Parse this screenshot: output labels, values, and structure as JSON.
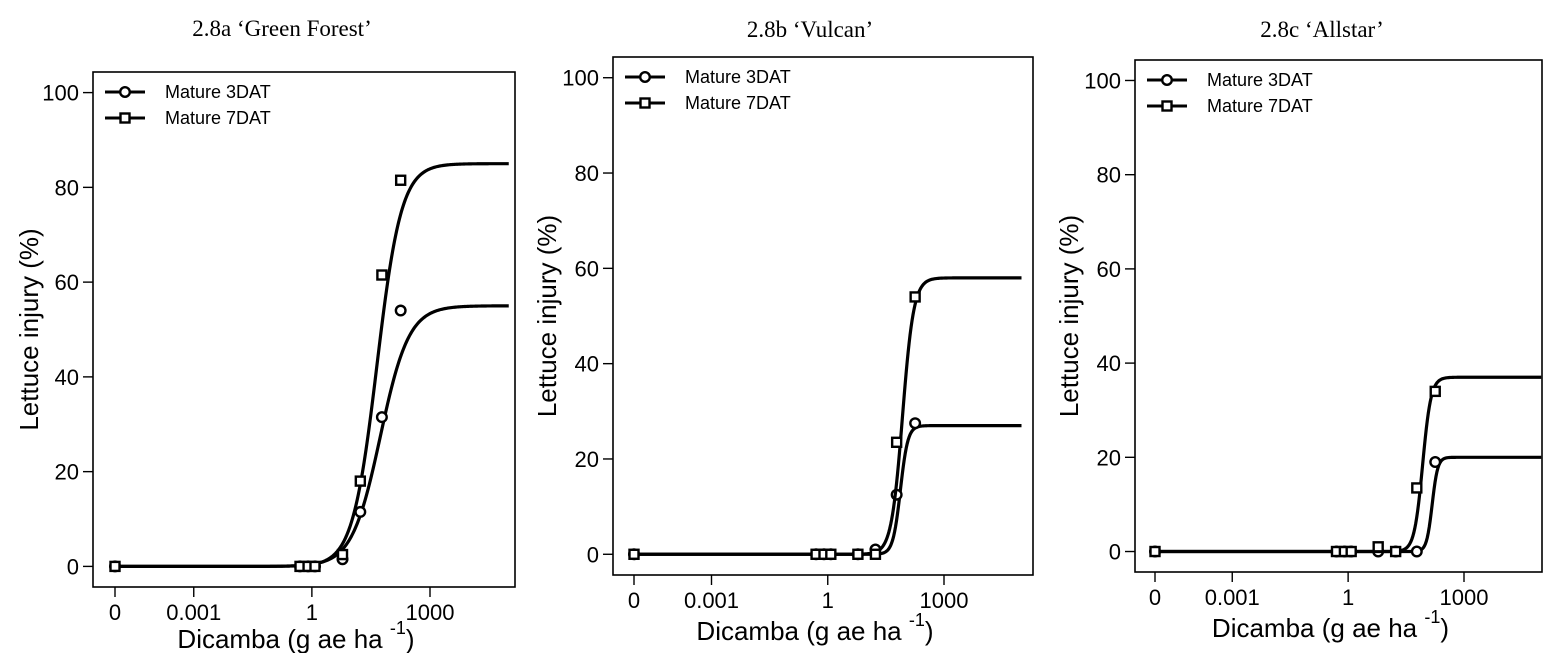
{
  "chart_data": [
    {
      "type": "line",
      "title": "2.8a ‘Green Forest’",
      "xlabel": "Dicamba (g ae ha",
      "xlabel_sup": "-1",
      "xlabel_close": ")",
      "ylabel": "Lettuce injury (%)",
      "x_scale": "log",
      "x_tick_values": [
        1e-05,
        0.001,
        1,
        1000
      ],
      "x_tick_labels": [
        "0",
        "0.001",
        "1",
        "1000"
      ],
      "y_ticks": [
        0,
        20,
        40,
        60,
        80,
        100
      ],
      "ylim": [
        0,
        100
      ],
      "legend_position": "top-left",
      "series": [
        {
          "name": "Mature 3DAT",
          "marker": "circle",
          "points": [
            {
              "x": 1e-05,
              "y": 0
            },
            {
              "x": 0.5,
              "y": 0
            },
            {
              "x": 0.8,
              "y": 0
            },
            {
              "x": 1.2,
              "y": 0
            },
            {
              "x": 6,
              "y": 1.5
            },
            {
              "x": 17,
              "y": 11.5
            },
            {
              "x": 60,
              "y": 31.5
            },
            {
              "x": 180,
              "y": 54
            }
          ],
          "curve": {
            "lower": 0,
            "upper": 55,
            "ed50": 55,
            "slope": 1.2,
            "x_max": 100000
          }
        },
        {
          "name": "Mature 7DAT",
          "marker": "square",
          "points": [
            {
              "x": 1e-05,
              "y": 0
            },
            {
              "x": 0.5,
              "y": 0
            },
            {
              "x": 0.8,
              "y": 0
            },
            {
              "x": 1.2,
              "y": 0
            },
            {
              "x": 6,
              "y": 2.5
            },
            {
              "x": 17,
              "y": 18
            },
            {
              "x": 60,
              "y": 61.5
            },
            {
              "x": 180,
              "y": 81.5
            }
          ],
          "curve": {
            "lower": 0,
            "upper": 85,
            "ed50": 45,
            "slope": 1.4,
            "x_max": 100000
          }
        }
      ]
    },
    {
      "type": "line",
      "title": "2.8b ‘Vulcan’",
      "xlabel": "Dicamba (g ae ha",
      "xlabel_sup": "-1",
      "xlabel_close": ")",
      "ylabel": "Lettuce injury (%)",
      "x_scale": "log",
      "x_tick_values": [
        1e-05,
        0.001,
        1,
        1000
      ],
      "x_tick_labels": [
        "0",
        "0.001",
        "1",
        "1000"
      ],
      "y_ticks": [
        0,
        20,
        40,
        60,
        80,
        100
      ],
      "ylim": [
        0,
        100
      ],
      "legend_position": "top-left",
      "series": [
        {
          "name": "Mature 3DAT",
          "marker": "circle",
          "points": [
            {
              "x": 1e-05,
              "y": 0
            },
            {
              "x": 0.5,
              "y": 0
            },
            {
              "x": 0.8,
              "y": 0
            },
            {
              "x": 1.2,
              "y": 0
            },
            {
              "x": 6,
              "y": 0
            },
            {
              "x": 17,
              "y": 1
            },
            {
              "x": 60,
              "y": 12.5
            },
            {
              "x": 180,
              "y": 27.5
            }
          ],
          "curve": {
            "lower": 0,
            "upper": 27,
            "ed50": 75,
            "slope": 4.5,
            "x_max": 100000
          }
        },
        {
          "name": "Mature 7DAT",
          "marker": "square",
          "points": [
            {
              "x": 1e-05,
              "y": 0
            },
            {
              "x": 0.5,
              "y": 0
            },
            {
              "x": 0.8,
              "y": 0
            },
            {
              "x": 1.2,
              "y": 0
            },
            {
              "x": 6,
              "y": 0
            },
            {
              "x": 17,
              "y": 0
            },
            {
              "x": 60,
              "y": 23.5
            },
            {
              "x": 180,
              "y": 54
            }
          ],
          "curve": {
            "lower": 0,
            "upper": 58,
            "ed50": 85,
            "slope": 3.0,
            "x_max": 100000
          }
        }
      ]
    },
    {
      "type": "line",
      "title": "2.8c ‘Allstar’",
      "xlabel": "Dicamba (g ae ha",
      "xlabel_sup": "-1",
      "xlabel_close": ")",
      "ylabel": "Lettuce injury (%)",
      "x_scale": "log",
      "x_tick_values": [
        1e-05,
        0.001,
        1,
        1000
      ],
      "x_tick_labels": [
        "0",
        "0.001",
        "1",
        "1000"
      ],
      "y_ticks": [
        0,
        20,
        40,
        60,
        80,
        100
      ],
      "ylim": [
        0,
        100
      ],
      "legend_position": "top-left",
      "series": [
        {
          "name": "Mature 3DAT",
          "marker": "circle",
          "points": [
            {
              "x": 1e-05,
              "y": 0
            },
            {
              "x": 0.5,
              "y": 0
            },
            {
              "x": 0.8,
              "y": 0
            },
            {
              "x": 1.2,
              "y": 0
            },
            {
              "x": 6,
              "y": 0
            },
            {
              "x": 17,
              "y": 0
            },
            {
              "x": 60,
              "y": 0
            },
            {
              "x": 180,
              "y": 19
            }
          ],
          "curve": {
            "lower": 0,
            "upper": 20,
            "ed50": 150,
            "slope": 6.0,
            "x_max": 100000
          }
        },
        {
          "name": "Mature 7DAT",
          "marker": "square",
          "points": [
            {
              "x": 1e-05,
              "y": 0
            },
            {
              "x": 0.5,
              "y": 0
            },
            {
              "x": 0.8,
              "y": 0
            },
            {
              "x": 1.2,
              "y": 0
            },
            {
              "x": 6,
              "y": 1
            },
            {
              "x": 17,
              "y": 0
            },
            {
              "x": 60,
              "y": 13.5
            },
            {
              "x": 180,
              "y": 34
            }
          ],
          "curve": {
            "lower": 0,
            "upper": 37,
            "ed50": 85,
            "slope": 4.0,
            "x_max": 100000
          }
        }
      ]
    }
  ]
}
